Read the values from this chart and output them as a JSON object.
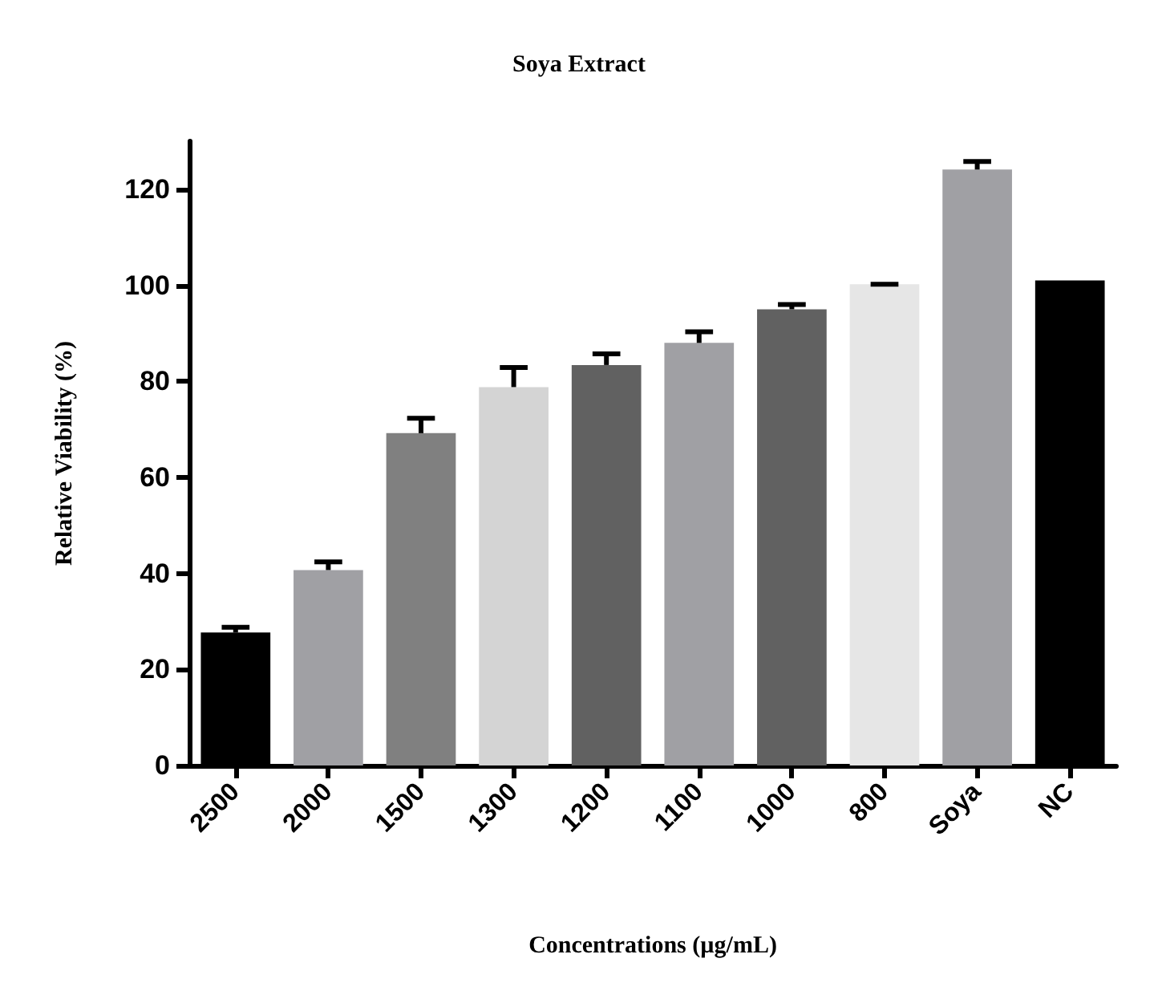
{
  "chart_data": {
    "type": "bar",
    "title": "Soya Extract",
    "xlabel": "Concentrations (µg/mL)",
    "ylabel": "Relative Viability (%)",
    "categories": [
      "2500",
      "2000",
      "1500",
      "1300",
      "1200",
      "1100",
      "1000",
      "800",
      "Soya",
      "NC"
    ],
    "values": [
      27.7,
      40.7,
      69.2,
      78.8,
      83.4,
      88.0,
      95.0,
      100.2,
      124.1,
      101.0
    ],
    "errors": [
      1.1,
      1.7,
      3.1,
      4.1,
      2.3,
      2.3,
      1.0,
      0,
      1.7,
      null
    ],
    "colors": [
      "#000000",
      "#a0a0a4",
      "#808080",
      "#d4d4d4",
      "#616161",
      "#a0a0a4",
      "#616161",
      "#e6e6e6",
      "#a0a0a4",
      "#000000"
    ],
    "ylim": [
      0,
      130
    ],
    "yticks": [
      0,
      20,
      40,
      60,
      80,
      100,
      120
    ],
    "grid": false
  }
}
